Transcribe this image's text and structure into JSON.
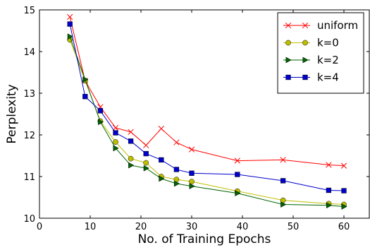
{
  "chart_data": {
    "type": "line",
    "title": "",
    "xlabel": "No. of Training Epochs",
    "ylabel": "Perplexity",
    "xlim": [
      0,
      65
    ],
    "ylim": [
      10,
      15
    ],
    "xticks": [
      0,
      10,
      20,
      30,
      40,
      50,
      60
    ],
    "yticks": [
      10,
      11,
      12,
      13,
      14,
      15
    ],
    "grid": false,
    "legend_position": "upper-right",
    "series": [
      {
        "name": "uniform",
        "color": "#ff0000",
        "marker": "x",
        "x": [
          6,
          9,
          12,
          15,
          18,
          21,
          24,
          27,
          30,
          39,
          48,
          57,
          60
        ],
        "y": [
          14.83,
          13.3,
          12.67,
          12.17,
          12.07,
          11.75,
          12.15,
          11.82,
          11.65,
          11.38,
          11.4,
          11.28,
          11.26
        ]
      },
      {
        "name": "k=0",
        "color": "#bfbf00",
        "marker": "circle",
        "x": [
          6,
          9,
          12,
          15,
          18,
          21,
          24,
          27,
          30,
          39,
          48,
          57,
          60
        ],
        "y": [
          14.28,
          13.3,
          12.33,
          11.83,
          11.43,
          11.33,
          11.0,
          10.93,
          10.88,
          10.65,
          10.43,
          10.35,
          10.33
        ]
      },
      {
        "name": "k=2",
        "color": "#006400",
        "marker": "triangle-right",
        "x": [
          6,
          9,
          12,
          15,
          18,
          21,
          24,
          27,
          30,
          39,
          48,
          57,
          60
        ],
        "y": [
          14.36,
          13.33,
          12.31,
          11.68,
          11.27,
          11.2,
          10.95,
          10.83,
          10.77,
          10.6,
          10.33,
          10.31,
          10.28
        ]
      },
      {
        "name": "k=4",
        "color": "#0000cc",
        "marker": "square",
        "x": [
          6,
          9,
          12,
          15,
          18,
          21,
          24,
          27,
          30,
          39,
          48,
          57,
          60
        ],
        "y": [
          14.66,
          12.92,
          12.58,
          12.05,
          11.85,
          11.55,
          11.4,
          11.17,
          11.08,
          11.05,
          10.9,
          10.67,
          10.66
        ]
      }
    ]
  }
}
